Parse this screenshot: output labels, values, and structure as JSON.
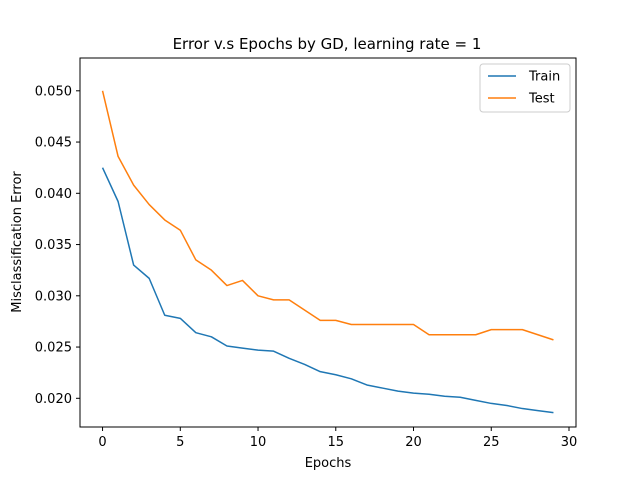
{
  "chart_data": {
    "type": "line",
    "title": "Error v.s Epochs by GD, learning rate = 1",
    "xlabel": "Epochs",
    "ylabel": "Misclassification Error",
    "xlim": [
      -1.45,
      30.45
    ],
    "ylim": [
      0.0172,
      0.0532
    ],
    "xticks": [
      0,
      5,
      10,
      15,
      20,
      25,
      30
    ],
    "yticks": [
      0.02,
      0.025,
      0.03,
      0.035,
      0.04,
      0.045,
      0.05
    ],
    "xtick_labels": [
      "0",
      "5",
      "10",
      "15",
      "20",
      "25",
      "30"
    ],
    "ytick_labels": [
      "0.020",
      "0.025",
      "0.030",
      "0.035",
      "0.040",
      "0.045",
      "0.050"
    ],
    "grid": false,
    "legend_position": "top-right",
    "x": [
      0,
      1,
      2,
      3,
      4,
      5,
      6,
      7,
      8,
      9,
      10,
      11,
      12,
      13,
      14,
      15,
      16,
      17,
      18,
      19,
      20,
      21,
      22,
      23,
      24,
      25,
      26,
      27,
      28,
      29
    ],
    "series": [
      {
        "name": "Train",
        "color": "#1f77b4",
        "values": [
          0.0425,
          0.0392,
          0.033,
          0.0317,
          0.0281,
          0.0278,
          0.0264,
          0.026,
          0.0251,
          0.0249,
          0.0247,
          0.0246,
          0.0239,
          0.0233,
          0.0226,
          0.0223,
          0.0219,
          0.0213,
          0.021,
          0.0207,
          0.0205,
          0.0204,
          0.0202,
          0.0201,
          0.0198,
          0.0195,
          0.0193,
          0.019,
          0.0188,
          0.0186
        ]
      },
      {
        "name": "Test",
        "color": "#ff7f0e",
        "values": [
          0.05,
          0.0436,
          0.0408,
          0.0389,
          0.0374,
          0.0364,
          0.0335,
          0.0325,
          0.031,
          0.0315,
          0.03,
          0.0296,
          0.0296,
          0.0286,
          0.0276,
          0.0276,
          0.0272,
          0.0272,
          0.0272,
          0.0272,
          0.0272,
          0.0262,
          0.0262,
          0.0262,
          0.0262,
          0.0267,
          0.0267,
          0.0267,
          0.0262,
          0.0257
        ]
      }
    ]
  }
}
